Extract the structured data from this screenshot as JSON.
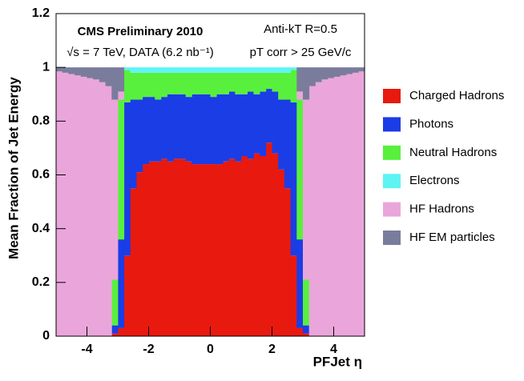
{
  "chart_data": {
    "type": "histogram",
    "stacked": true,
    "annotations": [
      "CMS Preliminary 2010",
      "√s = 7 TeV, DATA (6.2 nb⁻¹)",
      "Anti-kT R=0.5",
      "pT corr > 25 GeV/c"
    ],
    "x_label": "PFJet η",
    "y_label": "Mean Fraction of Jet Energy",
    "bins": [
      -5,
      -4.8,
      -4.6,
      -4.4,
      -4.2,
      -4,
      -3.8,
      -3.6,
      -3.4,
      -3.2,
      -3,
      -2.8,
      -2.6,
      -2.4,
      -2.2,
      -2,
      -1.8,
      -1.6,
      -1.4,
      -1.2,
      -1,
      -0.8,
      -0.6,
      -0.4,
      -0.2,
      0,
      0.2,
      0.4,
      0.6,
      0.8,
      1,
      1.2,
      1.4,
      1.6,
      1.8,
      2,
      2.2,
      2.4,
      2.6,
      2.8,
      3,
      3.2,
      3.4,
      3.6,
      3.8,
      4,
      4.2,
      4.4,
      4.6,
      4.8,
      5
    ],
    "series": [
      {
        "name": "Charged Hadrons",
        "color": "#e8190f",
        "values": [
          0,
          0,
          0,
          0,
          0,
          0,
          0,
          0,
          0,
          0.01,
          0.03,
          0.3,
          0.55,
          0.61,
          0.64,
          0.65,
          0.65,
          0.66,
          0.65,
          0.66,
          0.66,
          0.65,
          0.64,
          0.64,
          0.64,
          0.64,
          0.64,
          0.65,
          0.66,
          0.65,
          0.67,
          0.66,
          0.68,
          0.67,
          0.72,
          0.68,
          0.62,
          0.55,
          0.3,
          0.03,
          0.01,
          0,
          0,
          0,
          0,
          0,
          0,
          0,
          0,
          0
        ]
      },
      {
        "name": "Photons",
        "color": "#1b3de6",
        "values": [
          0,
          0,
          0,
          0,
          0,
          0,
          0,
          0,
          0,
          0.03,
          0.33,
          0.57,
          0.33,
          0.27,
          0.25,
          0.24,
          0.23,
          0.23,
          0.25,
          0.24,
          0.24,
          0.24,
          0.26,
          0.26,
          0.26,
          0.25,
          0.26,
          0.25,
          0.25,
          0.25,
          0.23,
          0.25,
          0.22,
          0.24,
          0.2,
          0.23,
          0.26,
          0.33,
          0.57,
          0.33,
          0.03,
          0,
          0,
          0,
          0,
          0,
          0,
          0,
          0,
          0
        ]
      },
      {
        "name": "Neutral Hadrons",
        "color": "#58f03c",
        "values": [
          0,
          0,
          0,
          0,
          0,
          0,
          0,
          0,
          0,
          0.17,
          0.52,
          0.12,
          0.1,
          0.1,
          0.09,
          0.09,
          0.1,
          0.09,
          0.08,
          0.08,
          0.08,
          0.09,
          0.08,
          0.08,
          0.08,
          0.09,
          0.08,
          0.08,
          0.07,
          0.08,
          0.08,
          0.07,
          0.08,
          0.07,
          0.06,
          0.07,
          0.1,
          0.1,
          0.12,
          0.52,
          0.17,
          0,
          0,
          0,
          0,
          0,
          0,
          0,
          0,
          0
        ]
      },
      {
        "name": "Electrons",
        "color": "#5ef4f4",
        "values": [
          0,
          0,
          0,
          0,
          0,
          0,
          0,
          0,
          0,
          0,
          0,
          0.01,
          0.02,
          0.02,
          0.02,
          0.02,
          0.02,
          0.02,
          0.02,
          0.02,
          0.02,
          0.02,
          0.02,
          0.02,
          0.02,
          0.02,
          0.02,
          0.02,
          0.02,
          0.02,
          0.02,
          0.02,
          0.02,
          0.02,
          0.02,
          0.02,
          0.02,
          0.02,
          0.01,
          0,
          0,
          0,
          0,
          0,
          0,
          0,
          0,
          0,
          0,
          0
        ]
      },
      {
        "name": "HF Hadrons",
        "color": "#eaa6da",
        "values": [
          0.985,
          0.98,
          0.975,
          0.97,
          0.965,
          0.96,
          0.955,
          0.945,
          0.93,
          0.67,
          0.03,
          0,
          0,
          0,
          0,
          0,
          0,
          0,
          0,
          0,
          0,
          0,
          0,
          0,
          0,
          0,
          0,
          0,
          0,
          0,
          0,
          0,
          0,
          0,
          0,
          0,
          0,
          0,
          0,
          0.03,
          0.67,
          0.93,
          0.945,
          0.955,
          0.96,
          0.965,
          0.97,
          0.975,
          0.98,
          0.985
        ]
      },
      {
        "name": "HF EM particles",
        "color": "#7a7c9c",
        "values": [
          0.015,
          0.02,
          0.025,
          0.03,
          0.035,
          0.04,
          0.045,
          0.055,
          0.07,
          0.12,
          0.09,
          0,
          0,
          0,
          0,
          0,
          0,
          0,
          0,
          0,
          0,
          0,
          0,
          0,
          0,
          0,
          0,
          0,
          0,
          0,
          0,
          0,
          0,
          0,
          0,
          0,
          0,
          0,
          0,
          0.09,
          0.12,
          0.07,
          0.055,
          0.045,
          0.04,
          0.035,
          0.03,
          0.025,
          0.02,
          0.015
        ]
      }
    ],
    "xlim": [
      -5,
      5
    ],
    "ylim": [
      0,
      1.2
    ],
    "xticks": [
      -4,
      -2,
      0,
      2,
      4
    ],
    "yticks": [
      0,
      0.2,
      0.4,
      0.6,
      0.8,
      1,
      1.2
    ],
    "legend": "right"
  }
}
